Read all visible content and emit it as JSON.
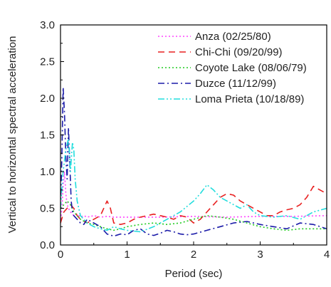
{
  "chart_data": {
    "type": "line",
    "title": "",
    "xlabel": "Period (sec)",
    "ylabel": "Vertical to horizontal spectral acceleration",
    "xlim": [
      0,
      4
    ],
    "ylim": [
      0,
      3.0
    ],
    "xticks": [
      0,
      1,
      2,
      3,
      4
    ],
    "xtick_labels": [
      "0",
      "1",
      "2",
      "3",
      "4"
    ],
    "yticks": [
      0,
      0.5,
      1.0,
      1.5,
      2.0,
      2.5,
      3.0
    ],
    "ytick_labels": [
      "0.0",
      "0.5",
      "1.0",
      "1.5",
      "2.0",
      "2.5",
      "3.0"
    ],
    "grid": false,
    "legend_position": "top-right",
    "series": [
      {
        "name": "Anza (02/25/80)",
        "color": "#ff44ff",
        "dash": "dotted",
        "x": [
          0.0,
          0.02,
          0.04,
          0.06,
          0.08,
          0.1,
          0.12,
          0.15,
          0.2,
          0.25,
          0.3,
          0.35,
          0.4,
          0.5,
          0.6,
          0.7,
          0.8,
          1.0,
          1.5,
          2.0,
          2.5,
          3.0,
          3.5,
          4.0
        ],
        "y": [
          0.3,
          0.5,
          0.8,
          1.0,
          0.7,
          0.55,
          0.5,
          0.45,
          0.4,
          0.42,
          0.38,
          0.4,
          0.38,
          0.4,
          0.38,
          0.39,
          0.38,
          0.38,
          0.38,
          0.39,
          0.38,
          0.39,
          0.39,
          0.4
        ]
      },
      {
        "name": "Chi-Chi (09/20/99)",
        "color": "#e82020",
        "dash": "dashed",
        "x": [
          0.0,
          0.05,
          0.1,
          0.15,
          0.2,
          0.25,
          0.3,
          0.4,
          0.5,
          0.6,
          0.7,
          0.75,
          0.8,
          0.9,
          1.0,
          1.1,
          1.2,
          1.3,
          1.4,
          1.5,
          1.6,
          1.7,
          1.8,
          1.9,
          2.0,
          2.1,
          2.2,
          2.3,
          2.4,
          2.5,
          2.6,
          2.7,
          2.8,
          2.9,
          3.0,
          3.1,
          3.2,
          3.3,
          3.4,
          3.5,
          3.6,
          3.7,
          3.8,
          3.9,
          4.0
        ],
        "y": [
          0.3,
          0.45,
          0.5,
          0.55,
          0.5,
          0.4,
          0.35,
          0.3,
          0.35,
          0.4,
          0.6,
          0.5,
          0.3,
          0.28,
          0.3,
          0.35,
          0.38,
          0.4,
          0.42,
          0.4,
          0.38,
          0.35,
          0.4,
          0.38,
          0.3,
          0.35,
          0.45,
          0.55,
          0.65,
          0.7,
          0.68,
          0.6,
          0.55,
          0.5,
          0.45,
          0.4,
          0.4,
          0.45,
          0.48,
          0.5,
          0.55,
          0.65,
          0.8,
          0.75,
          0.7
        ]
      },
      {
        "name": "Coyote Lake (08/06/79)",
        "color": "#22cc22",
        "dash": "dotted",
        "x": [
          0.0,
          0.05,
          0.1,
          0.15,
          0.2,
          0.25,
          0.3,
          0.4,
          0.5,
          0.6,
          0.7,
          0.8,
          0.9,
          1.0,
          1.2,
          1.4,
          1.6,
          1.8,
          2.0,
          2.2,
          2.4,
          2.6,
          2.8,
          3.0,
          3.2,
          3.4,
          3.6,
          3.8,
          4.0
        ],
        "y": [
          0.5,
          0.55,
          0.6,
          0.55,
          0.45,
          0.4,
          0.35,
          0.3,
          0.28,
          0.25,
          0.22,
          0.2,
          0.22,
          0.25,
          0.28,
          0.3,
          0.28,
          0.3,
          0.35,
          0.4,
          0.38,
          0.35,
          0.3,
          0.25,
          0.22,
          0.2,
          0.22,
          0.22,
          0.22
        ]
      },
      {
        "name": "Duzce (11/12/99)",
        "color": "#1a1aa8",
        "dash": "dashdot",
        "x": [
          0.0,
          0.02,
          0.04,
          0.06,
          0.08,
          0.1,
          0.12,
          0.14,
          0.16,
          0.18,
          0.2,
          0.25,
          0.3,
          0.35,
          0.4,
          0.5,
          0.6,
          0.7,
          0.8,
          0.9,
          1.0,
          1.1,
          1.2,
          1.3,
          1.4,
          1.5,
          1.6,
          1.7,
          1.8,
          1.9,
          2.0,
          2.2,
          2.4,
          2.6,
          2.8,
          3.0,
          3.2,
          3.4,
          3.6,
          3.8,
          4.0
        ],
        "y": [
          0.5,
          1.2,
          2.15,
          1.8,
          1.2,
          0.9,
          1.6,
          1.1,
          0.6,
          0.45,
          0.4,
          0.35,
          0.3,
          0.28,
          0.35,
          0.3,
          0.25,
          0.15,
          0.12,
          0.15,
          0.14,
          0.2,
          0.22,
          0.15,
          0.13,
          0.16,
          0.2,
          0.18,
          0.15,
          0.14,
          0.15,
          0.2,
          0.25,
          0.3,
          0.32,
          0.28,
          0.25,
          0.22,
          0.3,
          0.28,
          0.22
        ]
      },
      {
        "name": "Loma Prieta (10/18/89)",
        "color": "#22dddd",
        "dash": "dashdotdot",
        "x": [
          0.0,
          0.04,
          0.08,
          0.12,
          0.15,
          0.18,
          0.2,
          0.22,
          0.25,
          0.3,
          0.35,
          0.4,
          0.5,
          0.6,
          0.7,
          0.8,
          0.9,
          1.0,
          1.2,
          1.4,
          1.6,
          1.8,
          2.0,
          2.1,
          2.2,
          2.3,
          2.4,
          2.5,
          2.6,
          2.7,
          2.8,
          2.9,
          3.0,
          3.2,
          3.4,
          3.6,
          3.8,
          4.0
        ],
        "y": [
          0.5,
          1.0,
          1.3,
          1.45,
          1.0,
          1.4,
          1.3,
          0.9,
          0.6,
          0.4,
          0.35,
          0.3,
          0.25,
          0.22,
          0.2,
          0.25,
          0.22,
          0.2,
          0.18,
          0.25,
          0.35,
          0.45,
          0.6,
          0.7,
          0.82,
          0.75,
          0.65,
          0.6,
          0.55,
          0.5,
          0.55,
          0.45,
          0.4,
          0.38,
          0.4,
          0.35,
          0.45,
          0.5
        ]
      }
    ]
  }
}
